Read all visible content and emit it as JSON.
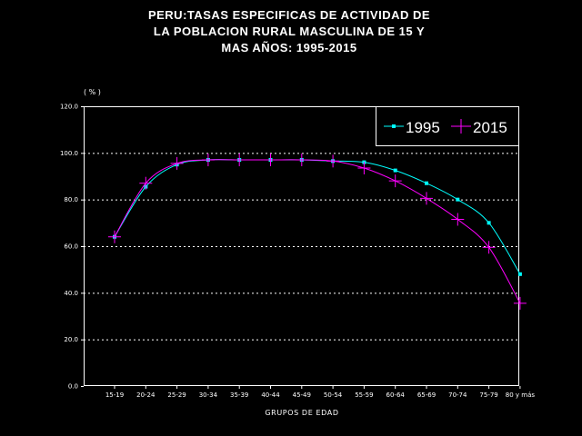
{
  "chart_data": {
    "type": "line",
    "title_lines": [
      "PERU:TASAS ESPECIFICAS DE ACTIVIDAD DE",
      "LA POBLACION RURAL MASCULINA DE 15 Y",
      "MAS AÑOS: 1995-2015"
    ],
    "unit_label": "( % )",
    "xlabel": "GRUPOS DE EDAD",
    "ylabel": "",
    "ylim": [
      0,
      120
    ],
    "yticks": [
      "0.0",
      "20.0",
      "40.0",
      "60.0",
      "80.0",
      "100.0",
      "120.0"
    ],
    "categories": [
      "15-19",
      "20-24",
      "25-29",
      "30-34",
      "35-39",
      "40-44",
      "45-49",
      "50-54",
      "55-59",
      "60-64",
      "65-69",
      "70-74",
      "75-79",
      "80 y más"
    ],
    "grid": "horizontal dotted",
    "legend_position": "top-right",
    "series": [
      {
        "name": "1995",
        "color": "#00ffff",
        "marker": "square",
        "values": [
          64,
          85.5,
          95,
          97,
          97,
          97,
          97,
          96.5,
          96,
          92.5,
          87,
          80,
          70,
          48
        ]
      },
      {
        "name": "2015",
        "color": "#ff00ff",
        "marker": "plus",
        "values": [
          64,
          87,
          95.5,
          97,
          97,
          97,
          97,
          96.5,
          93.5,
          88,
          80.5,
          71.5,
          59.5,
          35.5
        ]
      }
    ]
  }
}
